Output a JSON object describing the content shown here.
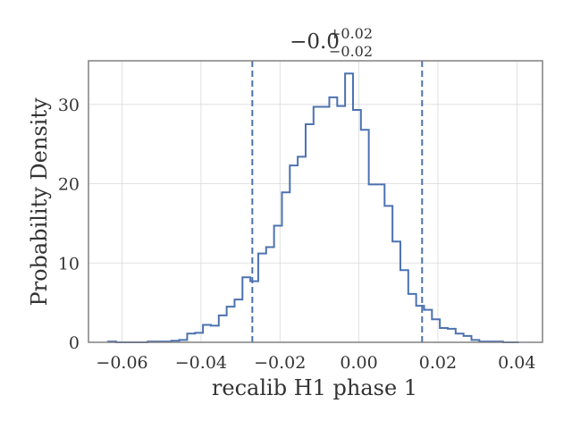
{
  "chart_data": {
    "type": "histogram-step",
    "title": {
      "main": "−0.0",
      "sup": "+0.02",
      "sub": "−0.02"
    },
    "xlabel": "recalib H1 phase 1",
    "ylabel": "Probability Density",
    "xlim": [
      -0.0685,
      0.0465
    ],
    "ylim": [
      0,
      35.5
    ],
    "xticks": [
      -0.06,
      -0.04,
      -0.02,
      0.0,
      0.02,
      0.04
    ],
    "xtick_labels": [
      "−0.06",
      "−0.04",
      "−0.02",
      "0.00",
      "0.02",
      "0.04"
    ],
    "yticks": [
      0,
      10,
      20,
      30
    ],
    "ytick_labels": [
      "0",
      "10",
      "20",
      "30"
    ],
    "grid": true,
    "series": [
      {
        "color": "#4c72b0",
        "bin_edges": [
          -0.0635,
          -0.0615,
          -0.0595,
          -0.0575,
          -0.0555,
          -0.0535,
          -0.0515,
          -0.0495,
          -0.0475,
          -0.0455,
          -0.0435,
          -0.0415,
          -0.0395,
          -0.0375,
          -0.0355,
          -0.0335,
          -0.0315,
          -0.0295,
          -0.0275,
          -0.0255,
          -0.0235,
          -0.0215,
          -0.0195,
          -0.0175,
          -0.0155,
          -0.0135,
          -0.0115,
          -0.0095,
          -0.0075,
          -0.0055,
          -0.0035,
          -0.0015,
          0.0005,
          0.0025,
          0.0045,
          0.0065,
          0.0085,
          0.0105,
          0.0125,
          0.0145,
          0.0165,
          0.0185,
          0.0205,
          0.0225,
          0.0245,
          0.0265,
          0.0285,
          0.0305,
          0.0325,
          0.0345,
          0.0365,
          0.0385,
          0.0405
        ],
        "densities": [
          0.1,
          0.0,
          0.0,
          0.0,
          0.0,
          0.1,
          0.1,
          0.1,
          0.2,
          0.3,
          1.1,
          1.2,
          2.2,
          2.1,
          3.4,
          4.5,
          5.4,
          8.2,
          7.7,
          11.2,
          12.0,
          14.7,
          18.9,
          22.3,
          23.4,
          27.5,
          29.7,
          29.7,
          30.9,
          29.8,
          33.9,
          29.3,
          26.8,
          19.9,
          19.9,
          17.2,
          12.7,
          9.1,
          6.1,
          4.6,
          4.1,
          2.9,
          1.8,
          1.7,
          1.1,
          0.8,
          0.3,
          0.1,
          0.1,
          0.1,
          0.0,
          0.0
        ]
      }
    ],
    "vlines": [
      {
        "x": -0.027,
        "style": "dashed",
        "color": "#4c72b0"
      },
      {
        "x": 0.016,
        "style": "dashed",
        "color": "#4c72b0"
      }
    ],
    "colors": {
      "line": "#4c72b0",
      "grid": "#d9d9d9",
      "frame": "#808080",
      "text": "#333333"
    }
  }
}
